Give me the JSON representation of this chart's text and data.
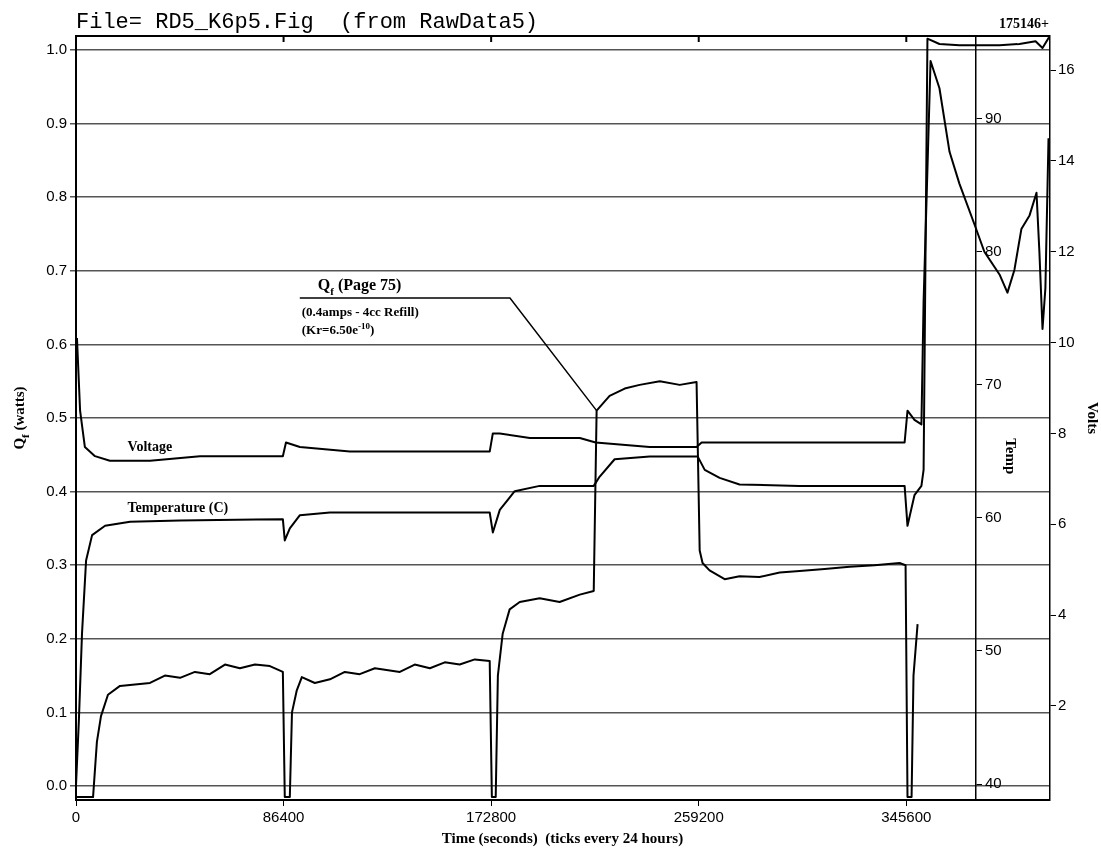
{
  "chart_data": {
    "type": "line",
    "title": "File= RD5_K6p5.Fig  (from RawData5)",
    "xlabel": "Time (seconds)  (ticks every 24 hours)",
    "ylabel": "Q$_{f}$ (watts)",
    "y2label": "Temp",
    "y3label": "Volts",
    "xlim": [
      0,
      405000
    ],
    "xticks": [
      0,
      86400,
      172800,
      259200,
      345600
    ],
    "ylim": [
      -0.019,
      1.019
    ],
    "yticks": [
      {
        "value": 0,
        "label": "0.0"
      },
      0.1,
      0.2,
      0.3,
      0.4,
      0.5,
      0.6,
      0.7,
      0.8,
      0.9,
      {
        "value": 1,
        "label": "1.0"
      }
    ],
    "y2lim": [
      38.8,
      96.2
    ],
    "y2ticks": [
      40,
      50,
      60,
      70,
      80,
      90
    ],
    "y3lim": [
      -0.07,
      16.75
    ],
    "y3ticks": [
      2,
      4,
      6,
      8,
      10,
      12,
      14,
      16
    ],
    "grid": "y",
    "legend": false,
    "annotations": [
      {
        "text": "Q$_{f}$ (Page 75)",
        "x": 216700,
        "y": 0.51
      },
      "(0.4amps - 4cc Refill)",
      "(Kr=6.50e$^{-10}$)",
      "175146+"
    ],
    "series": [
      {
        "color": "#000000",
        "x": [
          0,
          7100,
          8700,
          10400,
          13300,
          18300,
          30800,
          37000,
          43300,
          49500,
          55700,
          62000,
          68200,
          74500,
          80700,
          86100,
          86900,
          89000,
          89900,
          91900,
          94000,
          99400,
          105700,
          111900,
          118100,
          124400,
          134800,
          141000,
          147300,
          153500,
          159700,
          166000,
          172200,
          173100,
          174700,
          175600,
          177600,
          180500,
          184700,
          193000,
          201300,
          209700,
          215500,
          216700,
          222100,
          228400,
          234600,
          243000,
          251300,
          258300,
          259600,
          260800,
          263700,
          270000,
          276200,
          284500,
          292900,
          301200,
          311600,
          322000,
          332400,
          342800,
          345300,
          346100,
          347800,
          348600,
          350300
        ],
        "values": [
          -0.015,
          -0.015,
          0.06,
          0.095,
          0.124,
          0.136,
          0.14,
          0.15,
          0.147,
          0.155,
          0.152,
          0.165,
          0.16,
          0.165,
          0.163,
          0.155,
          -0.015,
          -0.015,
          0.1,
          0.13,
          0.148,
          0.14,
          0.145,
          0.155,
          0.152,
          0.16,
          0.155,
          0.165,
          0.16,
          0.168,
          0.165,
          0.172,
          0.17,
          -0.015,
          -0.015,
          0.15,
          0.207,
          0.24,
          0.25,
          0.255,
          0.25,
          0.26,
          0.265,
          0.51,
          0.53,
          0.54,
          0.545,
          0.55,
          0.545,
          0.549,
          0.32,
          0.303,
          0.293,
          0.281,
          0.285,
          0.284,
          0.29,
          0.292,
          0.295,
          0.298,
          0.3,
          0.303,
          0.3,
          -0.015,
          -0.015,
          0.15,
          0.22
        ]
      },
      {
        "name": "Temperature (C)",
        "color": "#000000",
        "axis": "y2",
        "x": [
          0,
          1200,
          2500,
          4200,
          6700,
          12100,
          22500,
          43300,
          86100,
          86900,
          89000,
          93200,
          105700,
          172200,
          173500,
          176400,
          182600,
          193000,
          215500,
          218000,
          224200,
          238800,
          258800,
          261700,
          267900,
          276200,
          301200,
          344900,
          346100,
          349000,
          351900,
          352800,
          354400,
          359400,
          367700,
          384400,
          392700,
          399400,
          402300,
          405000
        ],
        "values": [
          39.9,
          44.8,
          51.3,
          56.8,
          58.7,
          59.4,
          59.7,
          59.8,
          59.9,
          58.3,
          59.2,
          60.2,
          60.4,
          60.4,
          58.9,
          60.6,
          62.0,
          62.4,
          62.4,
          63.1,
          64.4,
          64.6,
          64.6,
          63.6,
          63.0,
          62.5,
          62.4,
          62.4,
          59.4,
          61.7,
          62.4,
          63.6,
          96.0,
          95.6,
          95.5,
          95.5,
          95.6,
          95.8,
          95.3,
          96.1
        ]
      },
      {
        "name": "Voltage",
        "color": "#000000",
        "axis": "y3",
        "x": [
          400,
          1700,
          3700,
          7900,
          14100,
          30800,
          51600,
          72400,
          86100,
          87400,
          93200,
          114000,
          134800,
          155600,
          172200,
          173500,
          176400,
          188900,
          209700,
          216300,
          238800,
          258300,
          260400,
          267900,
          301200,
          344900,
          346100,
          349000,
          351900,
          352800,
          355700,
          359400,
          363600,
          367700,
          374000,
          378100,
          384400,
          387700,
          390600,
          393500,
          396900,
          399800,
          401000,
          402300,
          403500,
          404800
        ],
        "values": [
          10.1,
          8.5,
          7.7,
          7.5,
          7.4,
          7.4,
          7.5,
          7.5,
          7.5,
          7.8,
          7.7,
          7.6,
          7.6,
          7.6,
          7.6,
          8.0,
          8.0,
          7.9,
          7.9,
          7.8,
          7.7,
          7.7,
          7.8,
          7.8,
          7.8,
          7.8,
          8.5,
          8.3,
          8.2,
          10.9,
          16.2,
          15.6,
          14.2,
          13.5,
          12.6,
          12.0,
          11.5,
          11.1,
          11.6,
          12.5,
          12.8,
          13.3,
          12.0,
          10.3,
          11.2,
          14.5
        ]
      }
    ]
  }
}
